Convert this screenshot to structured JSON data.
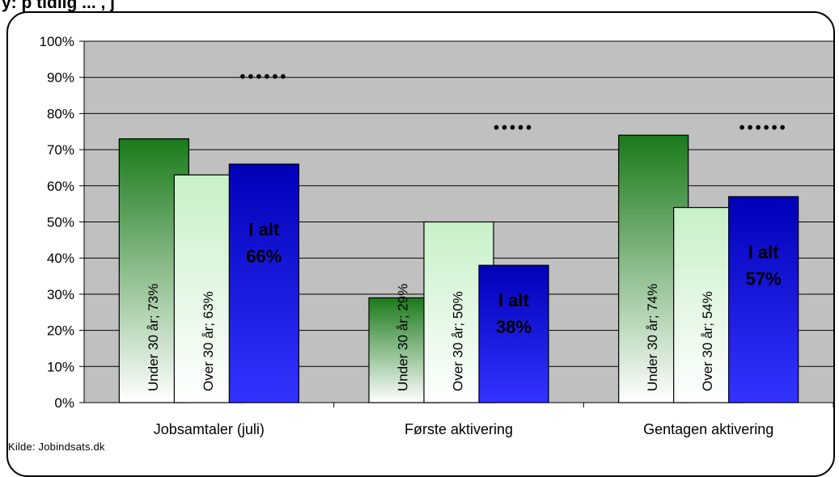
{
  "title": "y: p tidlig ... , j",
  "source": "Kilde: Jobindsats.dk",
  "colors": {
    "plot_bg": "#c0c0c0",
    "under30_top": "#1a7a1a",
    "under30_bottom": "#ffffff",
    "over30_top": "#c8f0c8",
    "over30_bottom": "#ffffff",
    "total_top": "#0000b8",
    "total_bottom": "#3333ff"
  },
  "chart_data": {
    "type": "bar",
    "categories": [
      "Jobsamtaler (juli)",
      "Første aktivering",
      "Gentagen aktivering"
    ],
    "ylim": [
      0,
      100
    ],
    "yticks": [
      "0%",
      "10%",
      "20%",
      "30%",
      "40%",
      "50%",
      "60%",
      "70%",
      "80%",
      "90%",
      "100%"
    ],
    "grid": true,
    "series": [
      {
        "key": "under30",
        "values": [
          73,
          29,
          74
        ],
        "labels": [
          "Under 30 år; 73%",
          "Under 30 år; 29%",
          "Under 30 år; 74%"
        ]
      },
      {
        "key": "over30",
        "values": [
          63,
          50,
          54
        ],
        "labels": [
          "Over 30 år; 63%",
          "Over 30 år; 50%",
          "Over 30 år; 54%"
        ]
      },
      {
        "key": "total",
        "values": [
          66,
          38,
          57
        ],
        "labels": [
          [
            "I alt",
            "66%"
          ],
          [
            "I alt",
            "38%"
          ],
          [
            "I alt",
            "57%"
          ]
        ]
      }
    ],
    "annotations": [
      {
        "category": 0,
        "text": "••••••",
        "value": 90
      },
      {
        "category": 1,
        "text": "•••••",
        "value": 76
      },
      {
        "category": 2,
        "text": "••••••",
        "value": 76
      }
    ]
  }
}
